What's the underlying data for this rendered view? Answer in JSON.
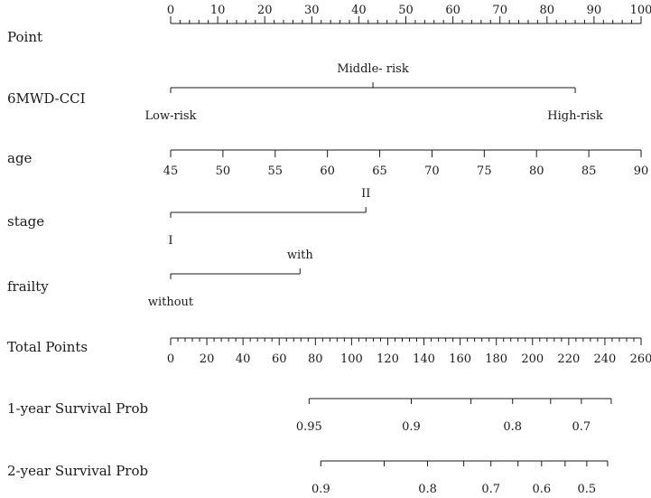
{
  "chart_data": {
    "type": "nomogram",
    "rows": [
      {
        "id": "points",
        "label": "Point",
        "axis": {
          "min": 0,
          "max": 100,
          "major": [
            0,
            10,
            20,
            30,
            40,
            50,
            60,
            70,
            80,
            90,
            100
          ],
          "minor_step": 2,
          "labels_above": true
        }
      },
      {
        "id": "sixmwd-cci",
        "label": "6MWD-CCI",
        "categories": [
          {
            "name": "Low-risk",
            "points": 0,
            "label_pos": "below"
          },
          {
            "name": "Middle- risk",
            "points": 43,
            "label_pos": "above"
          },
          {
            "name": "High-risk",
            "points": 86,
            "label_pos": "below"
          }
        ]
      },
      {
        "id": "age",
        "label": "age",
        "axis": {
          "min": 45,
          "max": 90,
          "points_range": [
            0,
            100
          ],
          "major": [
            45,
            50,
            55,
            60,
            65,
            70,
            75,
            80,
            85,
            90
          ],
          "labels_above": false
        }
      },
      {
        "id": "stage",
        "label": "stage",
        "categories": [
          {
            "name": "I",
            "points": 0,
            "label_pos": "below"
          },
          {
            "name": "II",
            "points": 41.5,
            "label_pos": "above"
          }
        ]
      },
      {
        "id": "frailty",
        "label": "frailty",
        "categories": [
          {
            "name": "without",
            "points": 0,
            "label_pos": "below"
          },
          {
            "name": "with",
            "points": 27.5,
            "label_pos": "above"
          }
        ]
      },
      {
        "id": "total-points",
        "label": "Total Points",
        "axis": {
          "min": 0,
          "max": 260,
          "major": [
            0,
            20,
            40,
            60,
            80,
            100,
            120,
            140,
            160,
            180,
            200,
            220,
            240,
            260
          ],
          "minor_step": 4,
          "labels_above": false
        }
      },
      {
        "id": "survival-1yr",
        "label": "1-year Survival Prob",
        "scale": [
          {
            "prob": "0.95",
            "total": 76.5,
            "label": true
          },
          {
            "prob": "0.9",
            "total": 133,
            "label": true
          },
          {
            "prob": "0.85",
            "total": 166,
            "label": false
          },
          {
            "prob": "0.8",
            "total": 189,
            "label": true
          },
          {
            "prob": "0.75",
            "total": 210,
            "label": false
          },
          {
            "prob": "0.7",
            "total": 227,
            "label": true
          },
          {
            "prob": "0.65",
            "total": 243.5,
            "label": false
          }
        ]
      },
      {
        "id": "survival-2yr",
        "label": "2-year Survival Prob",
        "scale": [
          {
            "prob": "0.9",
            "total": 83,
            "label": true
          },
          {
            "prob": "0.85",
            "total": 118,
            "label": false
          },
          {
            "prob": "0.8",
            "total": 142,
            "label": true
          },
          {
            "prob": "0.75",
            "total": 162,
            "label": false
          },
          {
            "prob": "0.7",
            "total": 177,
            "label": true
          },
          {
            "prob": "0.65",
            "total": 192,
            "label": false
          },
          {
            "prob": "0.6",
            "total": 205,
            "label": true
          },
          {
            "prob": "0.55",
            "total": 218,
            "label": false
          },
          {
            "prob": "0.5",
            "total": 230,
            "label": true
          },
          {
            "prob": "0.45",
            "total": 241.5,
            "label": false
          }
        ]
      }
    ]
  }
}
